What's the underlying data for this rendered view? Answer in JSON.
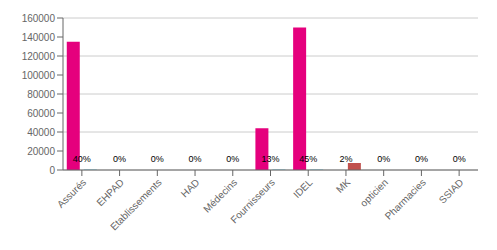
{
  "chart_data": {
    "type": "bar",
    "categories": [
      "Assurés",
      "EHPAD",
      "Etablissements",
      "HAD",
      "Médecins",
      "Fournisseurs",
      "IDEL",
      "MK",
      "opticien",
      "Pharmacies",
      "SSIAD"
    ],
    "series": [
      {
        "color": "#E5007D",
        "values": [
          135000,
          0,
          0,
          0,
          0,
          44000,
          150000,
          0,
          0,
          0,
          0
        ]
      },
      {
        "colors": [
          "#92CDDC",
          "#92CDDC",
          "#92CDDC",
          "#92CDDC",
          "#92CDDC",
          "#92CDDC",
          "#92CDDC",
          "#C0504D",
          "#92CDDC",
          "#92CDDC",
          "#92CDDC"
        ],
        "values": [
          800,
          100,
          100,
          100,
          100,
          800,
          800,
          7500,
          100,
          100,
          100
        ]
      }
    ],
    "annotations": [
      {
        "x": "Assurés",
        "y": 2800,
        "text": "40%"
      },
      {
        "x": "EHPAD",
        "y": 2800,
        "text": "0%"
      },
      {
        "x": "Etablissements",
        "y": 2800,
        "text": "0%"
      },
      {
        "x": "HAD",
        "y": 2800,
        "text": "0%"
      },
      {
        "x": "Médecins",
        "y": 2800,
        "text": "0%"
      },
      {
        "x": "Fournisseurs",
        "y": 2800,
        "text": "13%"
      },
      {
        "x": "IDEL",
        "y": 2800,
        "text": "45%"
      },
      {
        "x": "MK",
        "y": 2800,
        "text": "2%"
      },
      {
        "x": "opticien",
        "y": 2800,
        "text": "0%"
      },
      {
        "x": "Pharmacies",
        "y": 2800,
        "text": "0%"
      },
      {
        "x": "SSIAD",
        "y": 2800,
        "text": "0%"
      }
    ],
    "ylim": [
      0,
      160000
    ],
    "yticks": [
      0,
      20000,
      40000,
      60000,
      80000,
      100000,
      120000,
      140000,
      160000
    ],
    "grid": true
  }
}
